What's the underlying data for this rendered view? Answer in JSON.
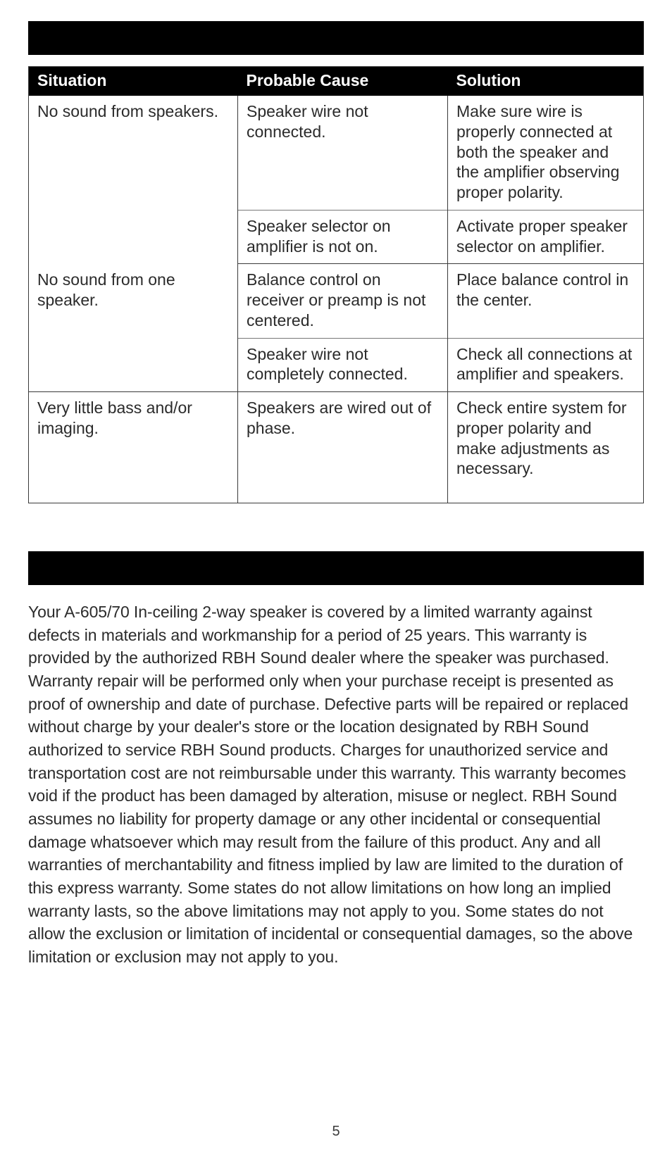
{
  "table": {
    "headers": [
      "Situation",
      "Probable Cause",
      "Solution"
    ],
    "groups": [
      {
        "situation": "No sound from speakers.",
        "rows": [
          {
            "cause": "Speaker wire not connected.",
            "solution": "Make sure wire is properly connected at both the speaker and the amplifier observing proper polarity."
          },
          {
            "cause": "Speaker selector on amplifier is not on.",
            "solution": "Activate proper speaker selector on amplifier."
          }
        ]
      },
      {
        "situation": "No sound from one speaker.",
        "rows": [
          {
            "cause": "Balance control on receiver or preamp is not centered.",
            "solution": "Place balance control in the center."
          },
          {
            "cause": "Speaker wire not completely connected.",
            "solution": "Check all connections at amplifier and speakers."
          }
        ]
      },
      {
        "situation": "Very little bass and/or imaging.",
        "rows": [
          {
            "cause": "Speakers are wired out of phase.",
            "solution": "Check entire system for proper polarity and make adjustments as necessary."
          }
        ]
      }
    ]
  },
  "warranty_text": "Your A-605/70 In-ceiling 2-way speaker is covered by a limited warranty against defects in materials and workmanship for a period of 25 years. This warranty is provided by the authorized RBH Sound dealer where the speaker was purchased. Warranty repair will be performed only when your purchase receipt is presented as proof of ownership and date of purchase. Defective parts will be repaired or replaced without charge by your dealer's store or the location designated by RBH Sound authorized to service RBH Sound products. Charges for unauthorized service and transportation cost are not reimbursable under this warranty. This warranty becomes void if the product has been damaged by alteration, misuse or neglect. RBH Sound assumes no liability for property damage or any other incidental or consequential damage whatsoever which may result from the failure of this product. Any and all warranties of merchantability and fitness implied by law are limited to the duration of this express warranty. Some states do not allow limitations on how long an implied warranty lasts, so the above limitations may not apply to you. Some states do not allow the exclusion or limitation of incidental or consequential damages, so the above limitation or exclusion may not apply to you.",
  "page_number": "5",
  "colors": {
    "bar_bg": "#000000",
    "text": "#2b2b2b",
    "border": "#3a3a3a",
    "sub_border": "#777777",
    "page_bg": "#ffffff"
  }
}
